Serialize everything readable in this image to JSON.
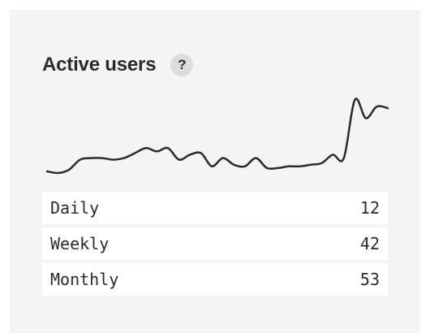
{
  "widget": {
    "title": "Active users",
    "help_label": "?"
  },
  "chart_data": {
    "type": "line",
    "y": [
      3,
      2,
      4,
      10,
      11,
      11,
      10,
      11,
      14,
      17,
      15,
      17,
      10,
      13,
      14,
      6,
      11,
      7,
      6,
      11,
      5,
      5,
      6,
      6,
      7,
      8,
      13,
      11,
      46,
      35,
      42,
      41
    ],
    "line_color": "#2a2a2a",
    "grid": false
  },
  "stats": [
    {
      "label": "Daily",
      "value": "12"
    },
    {
      "label": "Weekly",
      "value": "42"
    },
    {
      "label": "Monthly",
      "value": "53"
    }
  ]
}
